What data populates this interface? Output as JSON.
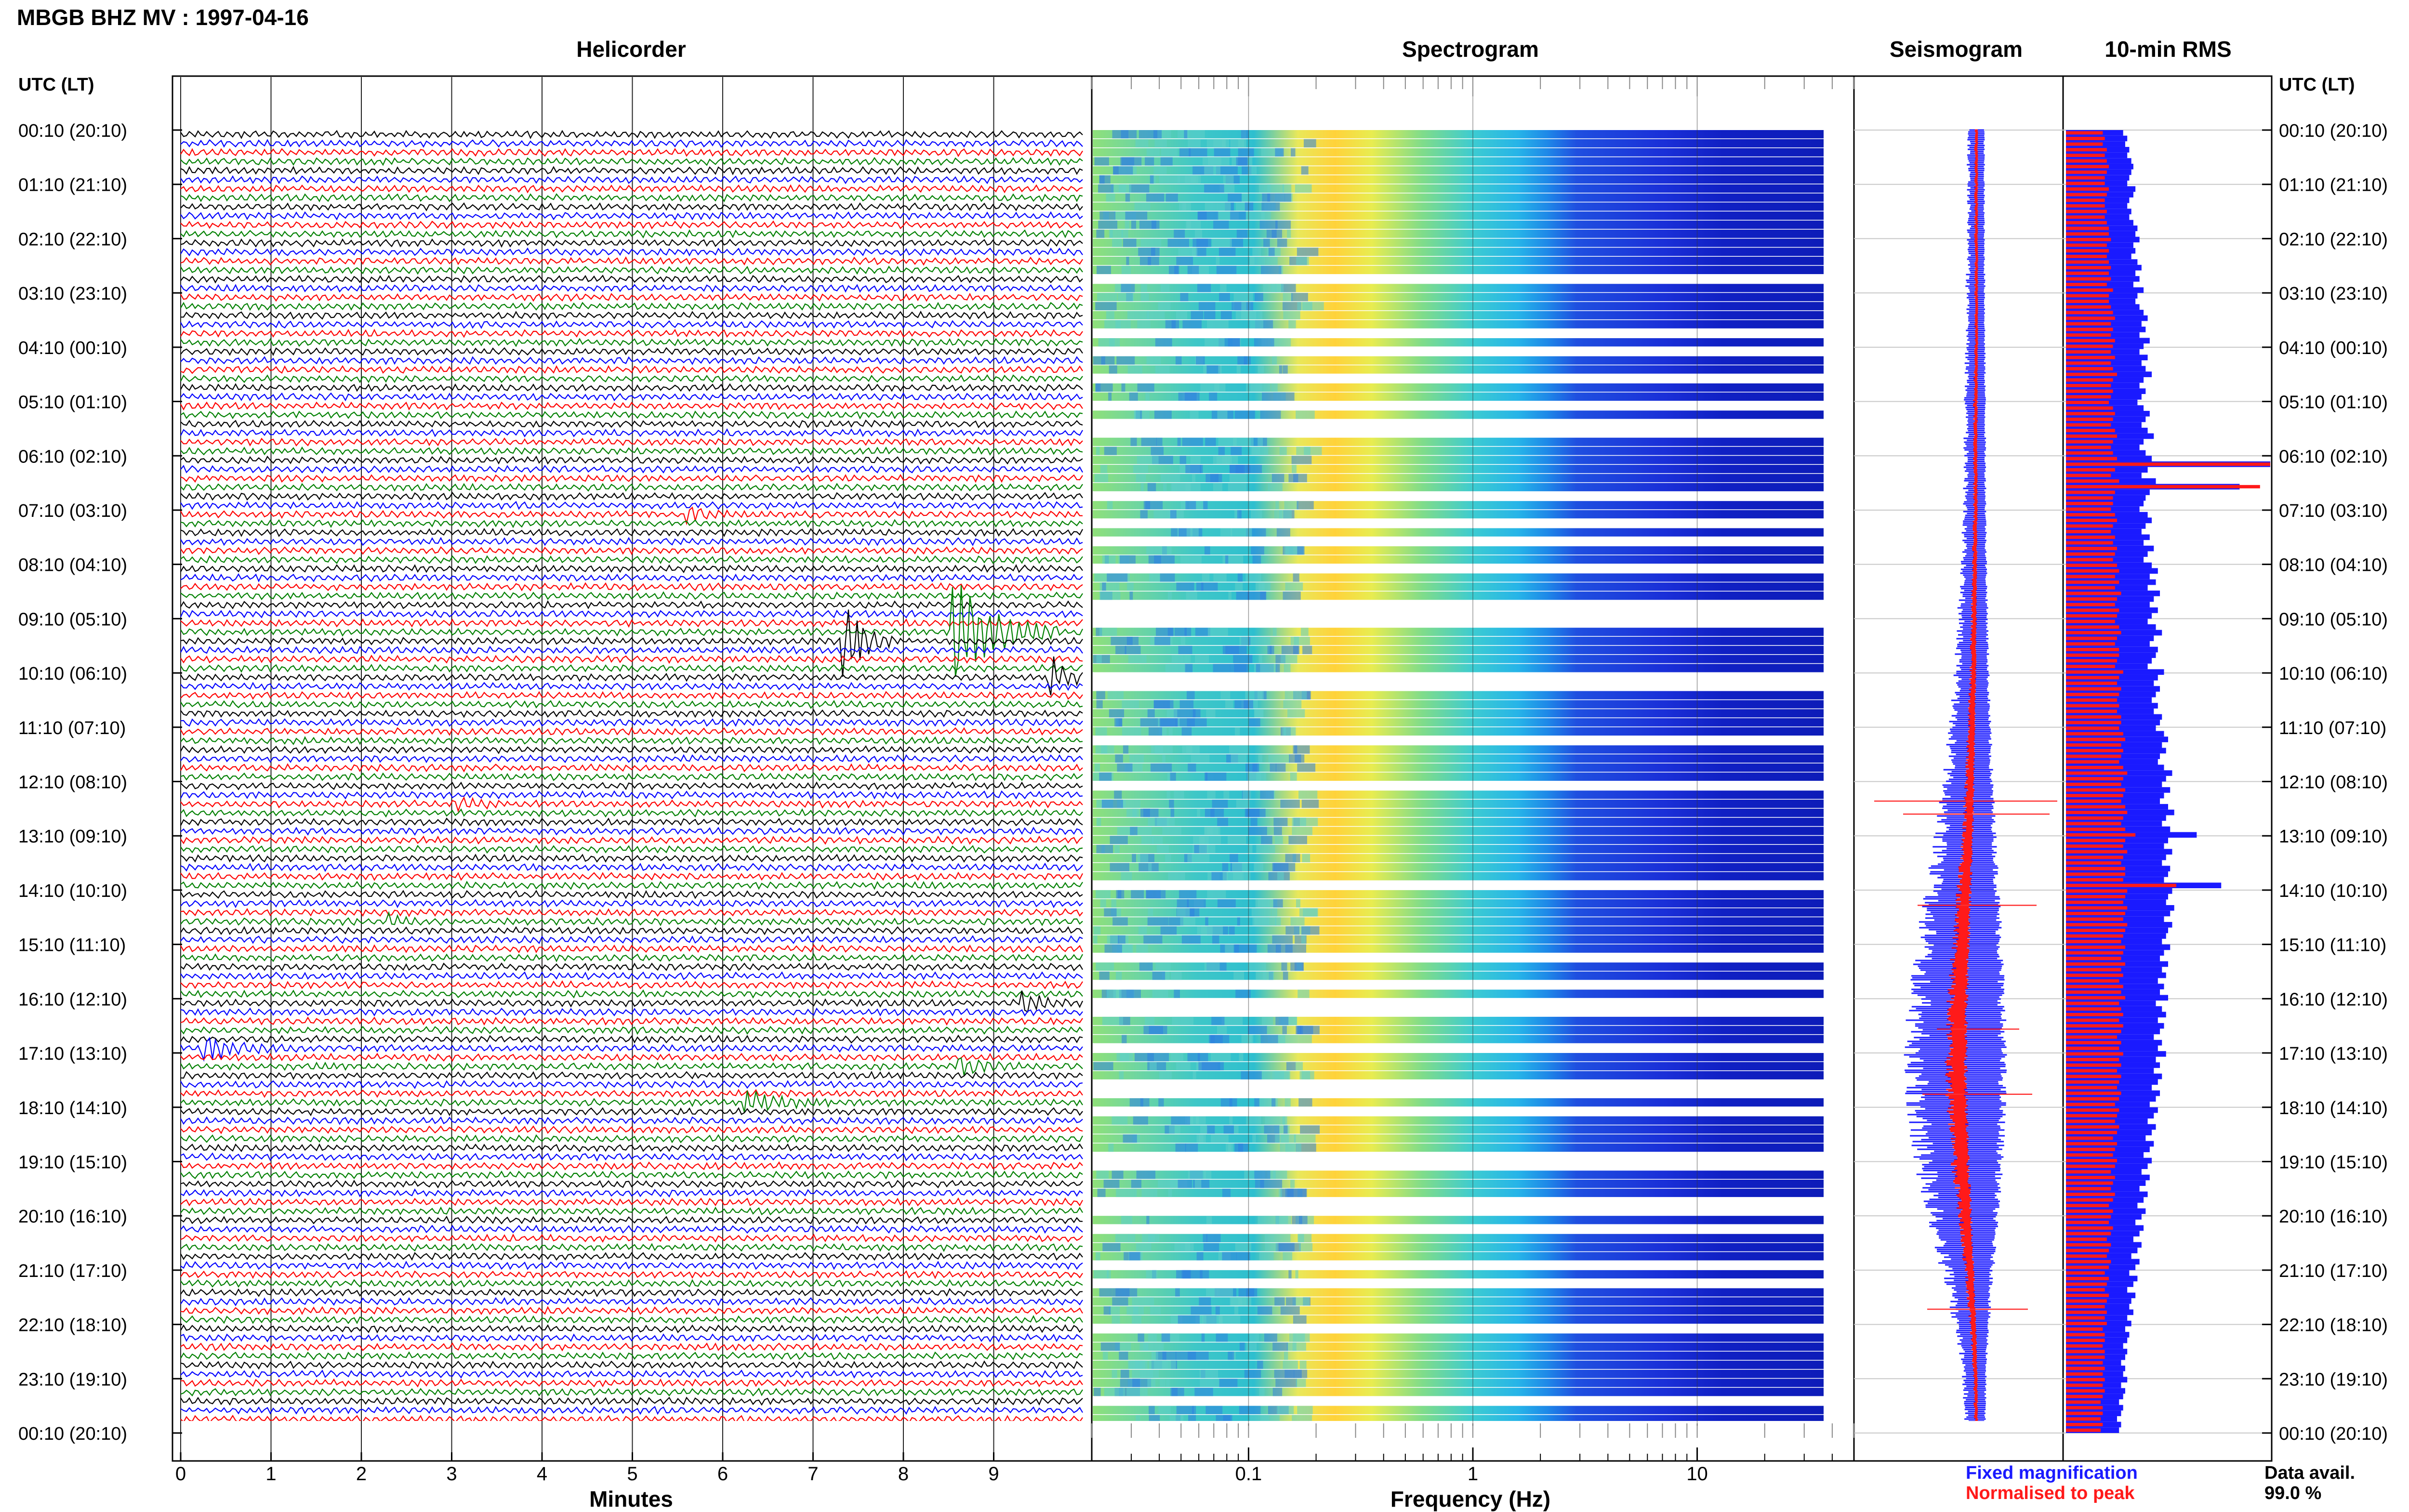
{
  "header": {
    "title": "MBGB BHZ MV : 1997-04-16"
  },
  "panels": {
    "helicorder": "Helicorder",
    "spectrogram": "Spectrogram",
    "seismogram": "Seismogram",
    "rms": "10-min RMS"
  },
  "axis_labels": {
    "utc_left": "UTC (LT)",
    "utc_right": "UTC (LT)",
    "minutes": "Minutes",
    "frequency": "Frequency (Hz)"
  },
  "legend": {
    "fixed": "Fixed magnification",
    "normalised": "Normalised to peak",
    "fixed_color": "#1a1aff",
    "normalised_color": "#ff1a1a"
  },
  "data_avail": {
    "label": "Data avail.",
    "value": "99.0 %"
  },
  "chart_data": {
    "type": "line",
    "time_labels": [
      "00:10 (20:10)",
      "01:10 (21:10)",
      "02:10 (22:10)",
      "03:10 (23:10)",
      "04:10 (00:10)",
      "05:10 (01:10)",
      "06:10 (02:10)",
      "07:10 (03:10)",
      "08:10 (04:10)",
      "09:10 (05:10)",
      "10:10 (06:10)",
      "11:10 (07:10)",
      "12:10 (08:10)",
      "13:10 (09:10)",
      "14:10 (10:10)",
      "15:10 (11:10)",
      "16:10 (12:10)",
      "17:10 (13:10)",
      "18:10 (14:10)",
      "19:10 (15:10)",
      "20:10 (16:10)",
      "21:10 (17:10)",
      "22:10 (18:10)",
      "23:10 (19:10)",
      "00:10 (20:10)"
    ],
    "minute_ticks": [
      "0",
      "1",
      "2",
      "3",
      "4",
      "5",
      "6",
      "7",
      "8",
      "9"
    ],
    "xlim_minutes": [
      0,
      10
    ],
    "freq_ticks": [
      "0.1",
      "1",
      "10"
    ],
    "xlim_freq_hz": [
      0.02,
      50
    ],
    "freq_scale": "log",
    "trace_colors": [
      "#000000",
      "#0000ff",
      "#ff0000",
      "#008000"
    ],
    "events": [
      {
        "hour": 9.33,
        "minute": 7.3,
        "amp": 2.2,
        "dur": 0.6
      },
      {
        "hour": 9.17,
        "minute": 8.5,
        "amp": 3.0,
        "dur": 1.2
      },
      {
        "hour": 10.0,
        "minute": 9.6,
        "amp": 1.2,
        "dur": 0.5
      },
      {
        "hour": 7.0,
        "minute": 5.6,
        "amp": 0.3,
        "dur": 0.7
      },
      {
        "hour": 16.83,
        "minute": 0.2,
        "amp": 0.6,
        "dur": 1.2
      },
      {
        "hour": 17.83,
        "minute": 6.2,
        "amp": 0.7,
        "dur": 1.0
      },
      {
        "hour": 17.17,
        "minute": 8.6,
        "amp": 0.4,
        "dur": 0.8
      },
      {
        "hour": 16.0,
        "minute": 9.3,
        "amp": 0.5,
        "dur": 0.7
      },
      {
        "hour": 12.33,
        "minute": 3.0,
        "amp": 0.3,
        "dur": 0.7
      },
      {
        "hour": 14.5,
        "minute": 2.3,
        "amp": 0.3,
        "dur": 0.5
      }
    ],
    "rms_fixed": [
      28,
      30,
      29,
      31,
      30,
      32,
      33,
      32,
      31,
      30,
      34,
      33,
      31,
      30,
      32,
      31,
      33,
      35,
      34,
      36,
      33,
      34,
      32,
      35,
      37,
      34,
      36,
      33,
      38,
      35,
      34,
      36,
      38,
      40,
      37,
      39,
      36,
      41,
      38,
      36,
      40,
      37,
      39,
      42,
      38,
      36,
      39,
      37,
      35,
      38,
      41,
      39,
      37,
      40,
      43,
      38,
      36,
      39,
      42,
      100,
      40,
      37,
      44,
      85,
      41,
      39,
      38,
      36,
      40,
      42,
      39,
      37,
      41,
      38,
      43,
      40,
      38,
      42,
      45,
      41,
      44,
      40,
      46,
      43,
      41,
      45,
      42,
      40,
      44,
      47,
      43,
      41,
      45,
      44,
      42,
      40,
      48,
      45,
      43,
      46,
      44,
      42,
      45,
      43,
      47,
      46,
      44,
      48,
      50,
      47,
      49,
      46,
      45,
      48,
      52,
      49,
      47,
      51,
      48,
      46,
      50,
      53,
      49,
      47,
      51,
      64,
      50,
      48,
      52,
      49,
      47,
      51,
      50,
      48,
      76,
      52,
      50,
      49,
      53,
      51,
      48,
      52,
      50,
      49,
      47,
      51,
      48,
      46,
      50,
      47,
      49,
      45,
      48,
      46,
      50,
      44,
      47,
      49,
      45,
      48,
      46,
      43,
      47,
      45,
      49,
      44,
      46,
      43,
      47,
      45,
      42,
      46,
      44,
      41,
      45,
      43,
      40,
      44,
      42,
      39,
      43,
      41,
      38,
      42,
      40,
      37,
      41,
      39,
      36,
      40,
      38,
      35,
      39,
      37,
      34,
      38,
      36,
      33,
      37,
      35,
      32,
      36,
      34,
      31,
      35,
      33,
      30,
      34,
      32,
      31,
      33,
      30,
      32,
      29,
      31,
      30,
      28,
      30,
      29,
      27,
      29,
      28,
      30,
      27,
      29,
      28,
      26,
      28,
      27,
      25,
      27,
      26
    ],
    "rms_normalised": [
      18,
      19,
      18,
      20,
      19,
      20,
      21,
      20,
      19,
      19,
      21,
      20,
      19,
      19,
      20,
      19,
      20,
      21,
      21,
      22,
      20,
      21,
      20,
      21,
      22,
      21,
      22,
      20,
      23,
      21,
      21,
      22,
      23,
      24,
      22,
      23,
      22,
      24,
      23,
      22,
      24,
      22,
      23,
      25,
      23,
      22,
      23,
      22,
      21,
      23,
      24,
      23,
      22,
      24,
      25,
      23,
      22,
      23,
      25,
      100,
      24,
      22,
      26,
      95,
      24,
      23,
      23,
      22,
      24,
      25,
      23,
      22,
      24,
      23,
      25,
      24,
      23,
      25,
      26,
      24,
      26,
      24,
      27,
      25,
      24,
      26,
      25,
      24,
      26,
      27,
      25,
      24,
      26,
      26,
      25,
      24,
      28,
      26,
      25,
      27,
      26,
      25,
      26,
      25,
      27,
      27,
      26,
      28,
      29,
      27,
      28,
      27,
      26,
      28,
      30,
      28,
      27,
      29,
      28,
      27,
      29,
      30,
      28,
      27,
      29,
      34,
      29,
      28,
      30,
      28,
      27,
      29,
      29,
      28,
      54,
      30,
      29,
      28,
      30,
      29,
      28,
      30,
      29,
      28,
      27,
      29,
      28,
      27,
      29,
      27,
      28,
      26,
      28,
      27,
      29,
      26,
      27,
      28,
      26,
      28,
      27,
      25,
      27,
      26,
      28,
      26,
      27,
      25,
      27,
      26,
      25,
      27,
      26,
      24,
      26,
      25,
      24,
      26,
      25,
      23,
      25,
      24,
      23,
      25,
      24,
      22,
      24,
      23,
      22,
      24,
      23,
      21,
      23,
      22,
      21,
      23,
      22,
      20,
      22,
      21,
      20,
      22,
      21,
      19,
      21,
      20,
      19,
      21,
      20,
      19,
      20,
      19,
      20,
      18,
      19,
      19,
      18,
      19,
      19,
      18,
      19,
      18,
      19,
      18,
      19,
      18,
      17,
      18,
      18,
      17,
      18,
      17
    ],
    "seismo_envelope_fixed": [
      0.08,
      0.08,
      0.08,
      0.09,
      0.09,
      0.1,
      0.1,
      0.11,
      0.12,
      0.14,
      0.16,
      0.19,
      0.23,
      0.28,
      0.34,
      0.4,
      0.44,
      0.46,
      0.45,
      0.4,
      0.32,
      0.24,
      0.16,
      0.11,
      0.09
    ],
    "seismo_envelope_normalised": [
      0.05,
      0.05,
      0.05,
      0.05,
      0.05,
      0.06,
      0.06,
      0.06,
      0.07,
      0.08,
      0.09,
      0.11,
      0.13,
      0.16,
      0.2,
      0.24,
      0.28,
      0.3,
      0.29,
      0.25,
      0.19,
      0.14,
      0.09,
      0.06,
      0.05
    ]
  }
}
